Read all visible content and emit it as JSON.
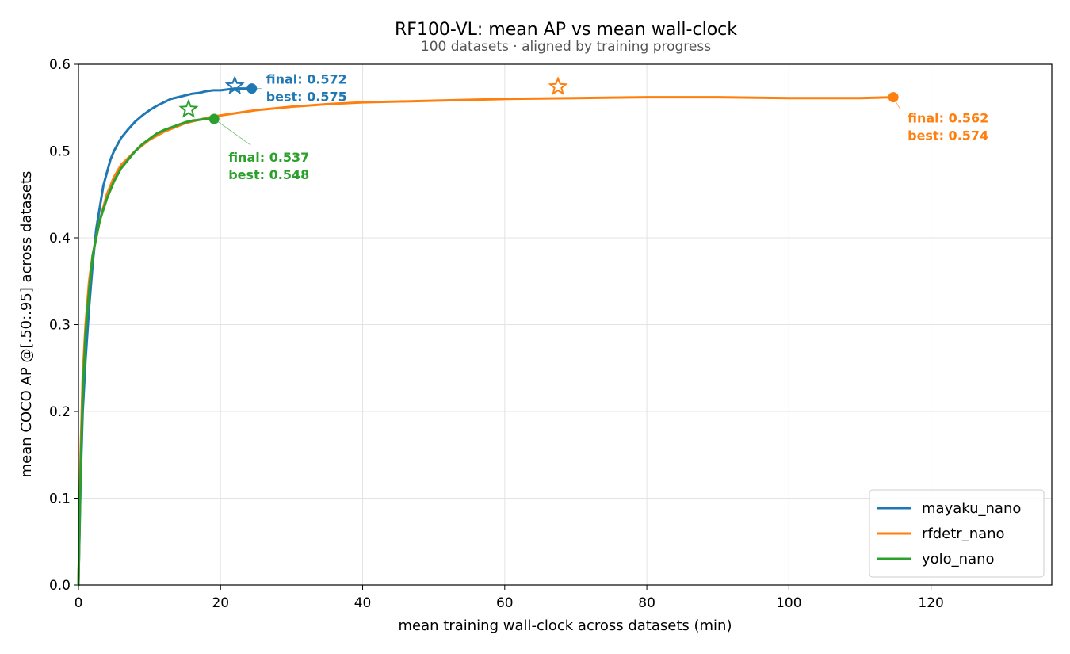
{
  "chart_data": {
    "type": "line",
    "title": "RF100-VL: mean AP vs mean wall-clock",
    "subtitle": "100 datasets · aligned by training progress",
    "xlabel": "mean training wall-clock across datasets (min)",
    "ylabel": "mean COCO AP @[.50:.95] across datasets",
    "xlim": [
      0,
      137
    ],
    "ylim": [
      0,
      0.6
    ],
    "xticks": [
      0,
      20,
      40,
      60,
      80,
      100,
      120
    ],
    "yticks": [
      0.0,
      0.1,
      0.2,
      0.3,
      0.4,
      0.5,
      0.6
    ],
    "xtick_labels": [
      "0",
      "20",
      "40",
      "60",
      "80",
      "100",
      "120"
    ],
    "ytick_labels": [
      "0.0",
      "0.1",
      "0.2",
      "0.3",
      "0.4",
      "0.5",
      "0.6"
    ],
    "grid": true,
    "legend_position": "bottom-right",
    "series": [
      {
        "name": "mayaku_nano",
        "color": "#1f77b4",
        "x": [
          0,
          0.3,
          0.6,
          1.0,
          1.5,
          2.0,
          2.5,
          3.0,
          3.5,
          4.0,
          4.5,
          5.0,
          6.0,
          7.0,
          8.0,
          9.0,
          10.0,
          11.0,
          12.0,
          13.0,
          14.0,
          15.0,
          16.0,
          17.0,
          18.0,
          19.0,
          20.0,
          21.0,
          22.0,
          23.0,
          24.4
        ],
        "y": [
          0.0,
          0.12,
          0.2,
          0.26,
          0.32,
          0.37,
          0.41,
          0.435,
          0.46,
          0.475,
          0.49,
          0.5,
          0.515,
          0.525,
          0.534,
          0.541,
          0.547,
          0.552,
          0.556,
          0.56,
          0.562,
          0.564,
          0.566,
          0.567,
          0.569,
          0.57,
          0.57,
          0.571,
          0.572,
          0.572,
          0.572
        ],
        "final": 0.572,
        "best": 0.575,
        "final_x": 24.4,
        "best_x": 22.0
      },
      {
        "name": "rfdetr_nano",
        "color": "#ff7f0e",
        "x": [
          0,
          0.3,
          0.6,
          1.0,
          1.5,
          2.0,
          3.0,
          4.0,
          5.0,
          6.0,
          8.0,
          10.0,
          12.0,
          15.0,
          18.0,
          20.0,
          25.0,
          30.0,
          35.0,
          40.0,
          50.0,
          60.0,
          70.0,
          80.0,
          90.0,
          100.0,
          110.0,
          114.7
        ],
        "y": [
          0.0,
          0.15,
          0.24,
          0.3,
          0.35,
          0.38,
          0.42,
          0.45,
          0.47,
          0.484,
          0.5,
          0.513,
          0.522,
          0.532,
          0.538,
          0.541,
          0.547,
          0.551,
          0.554,
          0.556,
          0.558,
          0.56,
          0.561,
          0.562,
          0.562,
          0.561,
          0.561,
          0.562
        ],
        "final": 0.562,
        "best": 0.574,
        "final_x": 114.7,
        "best_x": 67.5
      },
      {
        "name": "yolo_nano",
        "color": "#2ca02c",
        "x": [
          0,
          0.3,
          0.6,
          1.0,
          1.5,
          2.0,
          3.0,
          4.0,
          5.0,
          6.0,
          7.0,
          8.0,
          9.0,
          10.0,
          11.0,
          12.0,
          13.0,
          14.0,
          15.0,
          16.0,
          17.0,
          18.0,
          19.1
        ],
        "y": [
          0.0,
          0.13,
          0.22,
          0.29,
          0.34,
          0.38,
          0.42,
          0.445,
          0.465,
          0.48,
          0.49,
          0.5,
          0.508,
          0.514,
          0.52,
          0.524,
          0.527,
          0.53,
          0.533,
          0.535,
          0.536,
          0.537,
          0.537
        ],
        "final": 0.537,
        "best": 0.548,
        "final_x": 19.1,
        "best_x": 15.5
      }
    ],
    "annotations": {
      "final_prefix": "final: ",
      "best_prefix": "best: "
    }
  }
}
